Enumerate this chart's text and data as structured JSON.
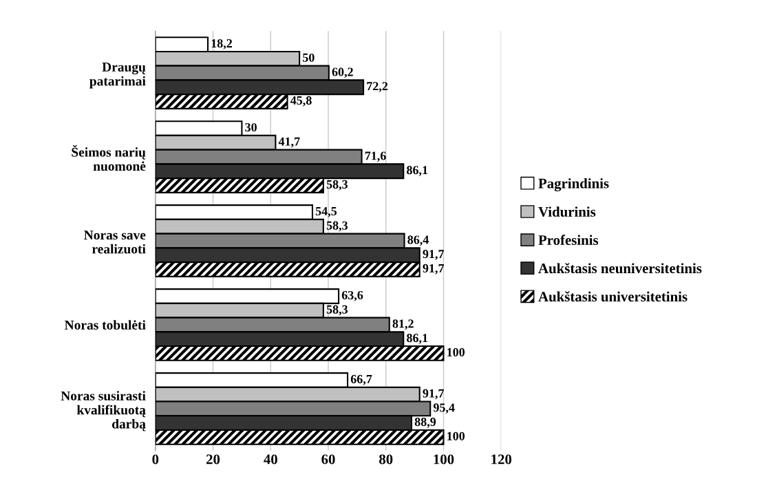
{
  "chart_data": {
    "type": "bar",
    "orientation": "horizontal",
    "categories": [
      "Draugų\npatarimai",
      "Šeimos narių\nnuomonė",
      "Noras save\nrealizuoti",
      "Noras tobulėti",
      "Noras susirasti\nkvalifikuotą\ndarbą"
    ],
    "series": [
      {
        "name": "Pagrindinis",
        "color": "#ffffff",
        "values": [
          18.2,
          30,
          54.5,
          63.6,
          66.7
        ],
        "value_labels": [
          "18,2",
          "30",
          "54,5",
          "63,6",
          "66,7"
        ]
      },
      {
        "name": "Vidurinis",
        "color": "#c0c0c0",
        "values": [
          50,
          41.7,
          58.3,
          58.3,
          91.7
        ],
        "value_labels": [
          "50",
          "41,7",
          "58,3",
          "58,3",
          "91,7"
        ]
      },
      {
        "name": "Profesinis",
        "color": "#808080",
        "values": [
          60.2,
          71.6,
          86.4,
          81.2,
          95.4
        ],
        "value_labels": [
          "60,2",
          "71,6",
          "86,4",
          "81,2",
          "95,4"
        ]
      },
      {
        "name": "Aukštasis neuniversitetinis",
        "color": "#333333",
        "values": [
          72.2,
          86.1,
          91.7,
          86.1,
          88.9
        ],
        "value_labels": [
          "72,2",
          "86,1",
          "91,7",
          "86,1",
          "88,9"
        ]
      },
      {
        "name": "Aukštasis universitetinis",
        "color": "#000000",
        "values": [
          45.8,
          58.3,
          91.7,
          100,
          100
        ],
        "value_labels": [
          "45,8",
          "58,3",
          "91,7",
          "100",
          "100"
        ]
      }
    ],
    "xlim": [
      0,
      120
    ],
    "xticks": [
      0,
      20,
      40,
      60,
      80,
      100,
      120
    ],
    "grid": "x",
    "legend": "right"
  }
}
